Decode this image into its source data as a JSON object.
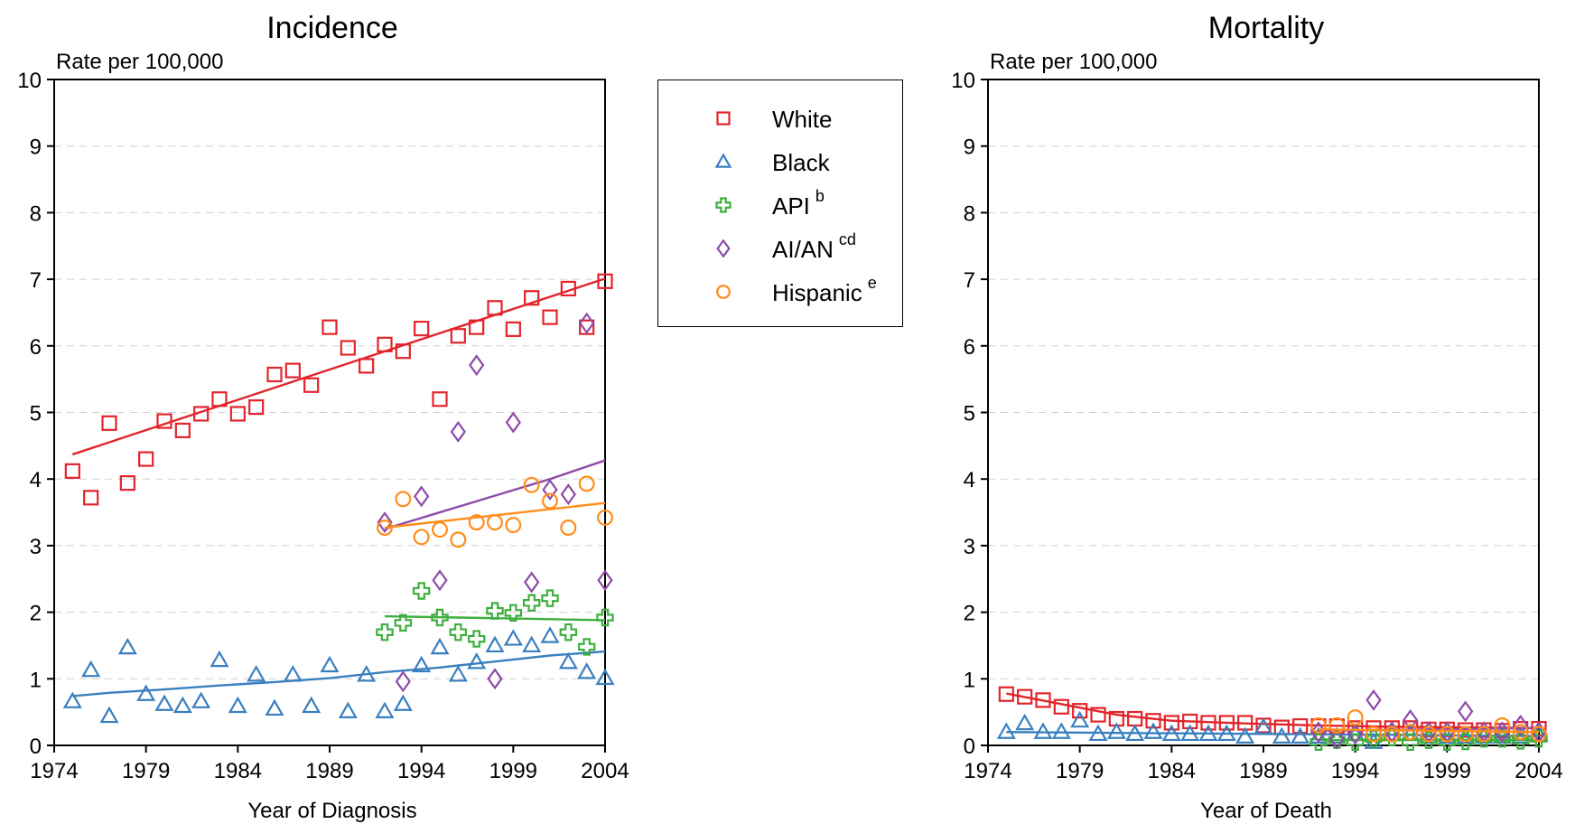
{
  "chart_data": [
    {
      "type": "scatter",
      "title": "Incidence",
      "ylabel": "Rate per 100,000",
      "xlabel": "Year of Diagnosis",
      "xlim": [
        1974,
        2004
      ],
      "ylim": [
        0,
        10
      ],
      "xticks": [
        "1974",
        "1979",
        "1984",
        "1989",
        "1994",
        "1999",
        "2004"
      ],
      "yticks": [
        "0",
        "1",
        "2",
        "3",
        "4",
        "5",
        "6",
        "7",
        "8",
        "9",
        "10"
      ],
      "grid": "horizontal dashed",
      "series": [
        {
          "key": "white",
          "x": [
            1975,
            1976,
            1977,
            1978,
            1979,
            1980,
            1981,
            1982,
            1983,
            1984,
            1985,
            1986,
            1987,
            1988,
            1989,
            1990,
            1991,
            1992,
            1993,
            1994,
            1995,
            1996,
            1997,
            1998,
            1999,
            2000,
            2001,
            2002,
            2003,
            2004
          ],
          "y": [
            4.12,
            3.72,
            4.84,
            3.94,
            4.3,
            4.87,
            4.73,
            4.98,
            5.2,
            4.98,
            5.08,
            5.57,
            5.63,
            5.41,
            6.28,
            5.97,
            5.7,
            6.02,
            5.92,
            6.26,
            5.2,
            6.15,
            6.28,
            6.57,
            6.25,
            6.72,
            6.43,
            6.86,
            6.28,
            6.97
          ],
          "trend_x": [
            1975,
            2004
          ],
          "trend_y": [
            4.37,
            7.01
          ]
        },
        {
          "key": "black",
          "x": [
            1975,
            1976,
            1977,
            1978,
            1979,
            1980,
            1981,
            1982,
            1983,
            1984,
            1985,
            1986,
            1987,
            1988,
            1989,
            1990,
            1991,
            1992,
            1993,
            1994,
            1995,
            1996,
            1997,
            1998,
            1999,
            2000,
            2001,
            2002,
            2003,
            2004
          ],
          "y": [
            0.66,
            1.13,
            0.44,
            1.47,
            0.77,
            0.62,
            0.59,
            0.66,
            1.28,
            0.59,
            1.06,
            0.55,
            1.06,
            0.59,
            1.2,
            0.51,
            1.06,
            0.51,
            0.62,
            1.2,
            1.47,
            1.06,
            1.25,
            1.5,
            1.6,
            1.5,
            1.64,
            1.25,
            1.1,
            1.01
          ],
          "trend_x": [
            1975,
            1977,
            1980,
            1983,
            1986,
            1989,
            1992,
            1995,
            1998,
            2001,
            2004
          ],
          "trend_y": [
            0.74,
            0.79,
            0.84,
            0.9,
            0.95,
            1.01,
            1.1,
            1.17,
            1.26,
            1.35,
            1.41
          ]
        },
        {
          "key": "api",
          "x": [
            1992,
            1993,
            1994,
            1995,
            1996,
            1997,
            1998,
            1999,
            2000,
            2001,
            2002,
            2003,
            2004
          ],
          "y": [
            1.7,
            1.84,
            2.32,
            1.92,
            1.7,
            1.6,
            2.02,
            1.99,
            2.14,
            2.21,
            1.7,
            1.48,
            1.92
          ],
          "trend_x": [
            1992,
            1996,
            2000,
            2004
          ],
          "trend_y": [
            1.94,
            1.92,
            1.9,
            1.88
          ]
        },
        {
          "key": "aian",
          "x": [
            1992,
            1993,
            1994,
            1995,
            1996,
            1997,
            1998,
            1999,
            2000,
            2001,
            2002,
            2003,
            2004
          ],
          "y": [
            3.35,
            0.96,
            3.74,
            2.48,
            4.71,
            5.71,
            1.0,
            4.85,
            2.45,
            3.84,
            3.77,
            6.34,
            2.48
          ],
          "trend_x": [
            1992,
            1995,
            1998,
            2001,
            2004
          ],
          "trend_y": [
            3.25,
            3.5,
            3.75,
            4.0,
            4.28
          ]
        },
        {
          "key": "hispanic",
          "x": [
            1992,
            1993,
            1994,
            1995,
            1996,
            1997,
            1998,
            1999,
            2000,
            2001,
            2002,
            2003,
            2004
          ],
          "y": [
            3.27,
            3.7,
            3.13,
            3.24,
            3.09,
            3.35,
            3.35,
            3.31,
            3.91,
            3.67,
            3.27,
            3.93,
            3.42
          ],
          "trend_x": [
            1992,
            2004
          ],
          "trend_y": [
            3.27,
            3.64
          ]
        }
      ]
    },
    {
      "type": "scatter",
      "title": "Mortality",
      "ylabel": "Rate per 100,000",
      "xlabel": "Year of Death",
      "xlim": [
        1974,
        2004
      ],
      "ylim": [
        0,
        10
      ],
      "xticks": [
        "1974",
        "1979",
        "1984",
        "1989",
        "1994",
        "1999",
        "2004"
      ],
      "yticks": [
        "0",
        "1",
        "2",
        "3",
        "4",
        "5",
        "6",
        "7",
        "8",
        "9",
        "10"
      ],
      "grid": "horizontal dashed",
      "series": [
        {
          "key": "white",
          "x": [
            1975,
            1976,
            1977,
            1978,
            1979,
            1980,
            1981,
            1982,
            1983,
            1984,
            1985,
            1986,
            1987,
            1988,
            1989,
            1990,
            1991,
            1992,
            1993,
            1994,
            1995,
            1996,
            1997,
            1998,
            1999,
            2000,
            2001,
            2002,
            2003,
            2004
          ],
          "y": [
            0.77,
            0.73,
            0.68,
            0.58,
            0.52,
            0.46,
            0.4,
            0.4,
            0.37,
            0.34,
            0.36,
            0.34,
            0.34,
            0.34,
            0.3,
            0.27,
            0.29,
            0.29,
            0.29,
            0.26,
            0.26,
            0.26,
            0.26,
            0.24,
            0.24,
            0.23,
            0.23,
            0.22,
            0.25,
            0.25
          ],
          "trend_x": [
            1975,
            1978,
            1981,
            1984,
            1988,
            1992,
            1996,
            2000,
            2004
          ],
          "trend_y": [
            0.78,
            0.62,
            0.46,
            0.37,
            0.33,
            0.3,
            0.28,
            0.27,
            0.26
          ]
        },
        {
          "key": "black",
          "x": [
            1975,
            1976,
            1977,
            1978,
            1979,
            1980,
            1981,
            1982,
            1983,
            1984,
            1985,
            1986,
            1987,
            1988,
            1989,
            1990,
            1991,
            1992,
            1993,
            1994,
            1995,
            1996,
            1997,
            1998,
            1999,
            2000,
            2001,
            2002,
            2003,
            2004
          ],
          "y": [
            0.2,
            0.33,
            0.2,
            0.2,
            0.37,
            0.17,
            0.2,
            0.17,
            0.2,
            0.17,
            0.17,
            0.17,
            0.17,
            0.13,
            0.27,
            0.13,
            0.13,
            0.13,
            0.13,
            0.17,
            0.05,
            0.17,
            0.17,
            0.13,
            0.13,
            0.13,
            0.13,
            0.13,
            0.13,
            0.17
          ],
          "trend_x": [
            1975,
            1985,
            1995,
            2004
          ],
          "trend_y": [
            0.2,
            0.18,
            0.16,
            0.14
          ]
        },
        {
          "key": "api",
          "x": [
            1992,
            1993,
            1994,
            1995,
            1996,
            1997,
            1998,
            1999,
            2000,
            2001,
            2002,
            2003,
            2004
          ],
          "y": [
            0.05,
            0.08,
            0.05,
            0.1,
            0.12,
            0.05,
            0.08,
            0.05,
            0.06,
            0.1,
            0.1,
            0.07,
            0.1
          ],
          "trend_x": [
            1992,
            2004
          ],
          "trend_y": [
            0.08,
            0.08
          ]
        },
        {
          "key": "aian",
          "x": [
            1992,
            1993,
            1994,
            1995,
            1996,
            1997,
            1998,
            1999,
            2000,
            2001,
            2002,
            2003,
            2004
          ],
          "y": [
            0.2,
            0.1,
            0.17,
            0.68,
            0.2,
            0.38,
            0.2,
            0.2,
            0.51,
            0.2,
            0.2,
            0.3,
            0.2
          ],
          "trend_x": [
            1992,
            2004
          ],
          "trend_y": [
            0.22,
            0.26
          ]
        },
        {
          "key": "hispanic",
          "x": [
            1992,
            1993,
            1994,
            1995,
            1996,
            1997,
            1998,
            1999,
            2000,
            2001,
            2002,
            2003,
            2004
          ],
          "y": [
            0.3,
            0.3,
            0.42,
            0.17,
            0.17,
            0.2,
            0.17,
            0.17,
            0.17,
            0.17,
            0.3,
            0.2,
            0.17
          ],
          "trend_x": [
            1992,
            2004
          ],
          "trend_y": [
            0.24,
            0.2
          ]
        }
      ]
    }
  ],
  "legend": {
    "items": [
      {
        "key": "white",
        "label": "White",
        "sup": "",
        "marker": "square",
        "color": "#e3242b"
      },
      {
        "key": "black",
        "label": "Black",
        "sup": "",
        "marker": "triangle",
        "color": "#3a7fbf"
      },
      {
        "key": "api",
        "label": "API",
        "sup": "b",
        "marker": "cross",
        "color": "#3fae3f"
      },
      {
        "key": "aian",
        "label": "AI/AN",
        "sup": "cd",
        "marker": "diamond",
        "color": "#8e4ba8"
      },
      {
        "key": "hispanic",
        "label": "Hispanic",
        "sup": "e",
        "marker": "circle",
        "color": "#ff8c1a"
      }
    ]
  },
  "colors": {
    "white": "#e3242b",
    "black": "#3a7fbf",
    "api": "#3fae3f",
    "aian": "#8e4ba8",
    "hispanic": "#ff8c1a",
    "grid": "#cfcfcf",
    "axis": "#000000"
  }
}
